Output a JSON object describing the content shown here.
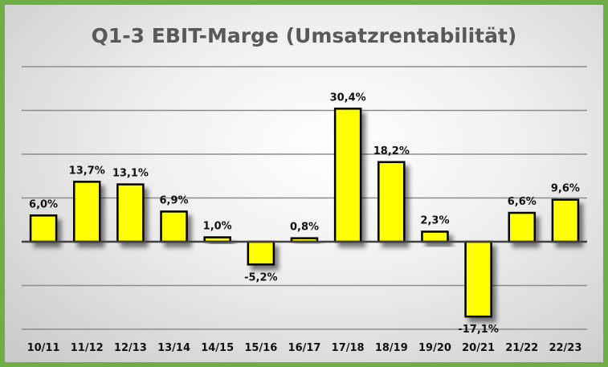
{
  "chart_data": {
    "type": "bar",
    "title": "Q1-3 EBIT-Marge (Umsatzrentabilität)",
    "categories": [
      "10/11",
      "11/12",
      "12/13",
      "13/14",
      "14/15",
      "15/16",
      "16/17",
      "17/18",
      "18/19",
      "19/20",
      "20/21",
      "21/22",
      "22/23"
    ],
    "values": [
      6.0,
      13.7,
      13.1,
      6.9,
      1.0,
      -5.2,
      0.8,
      30.4,
      18.2,
      2.3,
      -17.1,
      6.6,
      9.6
    ],
    "data_labels": [
      "6,0%",
      "13,7%",
      "13,1%",
      "6,9%",
      "1,0%",
      "-5,2%",
      "0,8%",
      "30,4%",
      "18,2%",
      "2,3%",
      "-17,1%",
      "6,6%",
      "9,6%"
    ],
    "unit": "%",
    "ylim": [
      -20,
      40
    ],
    "grid": true,
    "y_tick_labels_shown": false,
    "bar_color": "#FFFF00",
    "bar_border_color": "#000000",
    "frame_color": "#70AD47"
  }
}
